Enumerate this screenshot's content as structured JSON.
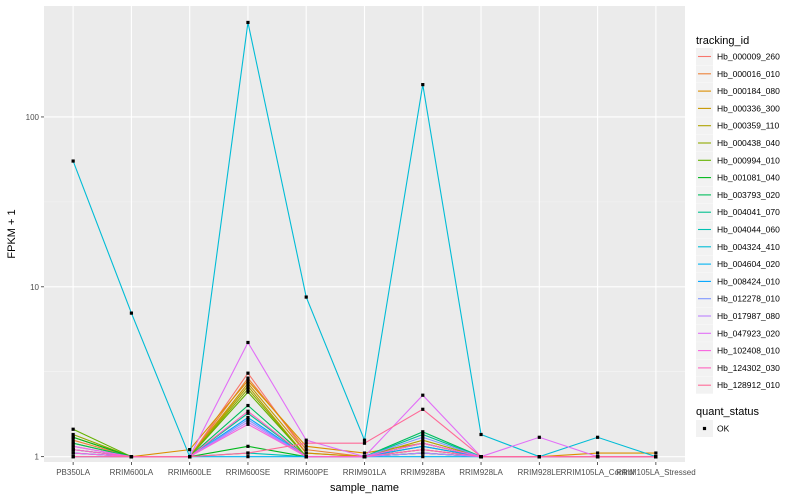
{
  "chart_data": {
    "type": "line",
    "xlabel": "sample_name",
    "ylabel": "FPKM + 1",
    "y_scale": "log10",
    "ylim": [
      0.93,
      450
    ],
    "y_ticks": [
      1,
      10,
      100
    ],
    "y_tick_labels": [
      "1",
      "10",
      "100"
    ],
    "categories": [
      "PB350LA",
      "RRIM600LA",
      "RRIM600LE",
      "RRIM600SE",
      "RRIM600PE",
      "RRIM901LA",
      "RRIM928BA",
      "RRIM928LA",
      "RRIM928LE",
      "RRIM105LA_Control",
      "RRIM105LA_Stressed"
    ],
    "category_labels": [
      "PB350LA",
      "RRIM600LA",
      "RRIM600LE",
      "RRIM600SE",
      "RRIM600PE",
      "RRIM901LA",
      "RRIM928BA",
      "RRIM928LA",
      "RRIM928LE",
      "RRIM105LA_Control",
      "RRIM105LA_Stressed"
    ],
    "grid": true,
    "background": "#ebebeb",
    "legend_position": "right",
    "legend_title": "tracking_id",
    "series": [
      {
        "name": "Hb_000009_260",
        "color": "#F8766D",
        "values": [
          1.15,
          1.0,
          1.0,
          3.1,
          1.05,
          1.0,
          1.05,
          1.0,
          1.0,
          1.0,
          1.0
        ]
      },
      {
        "name": "Hb_000016_010",
        "color": "#EC8239",
        "values": [
          1.25,
          1.0,
          1.0,
          2.9,
          1.1,
          1.0,
          1.1,
          1.0,
          1.0,
          1.0,
          1.0
        ]
      },
      {
        "name": "Hb_000184_080",
        "color": "#DB8E00",
        "values": [
          1.1,
          1.0,
          1.1,
          2.8,
          1.15,
          1.05,
          1.2,
          1.0,
          1.0,
          1.05,
          1.05
        ]
      },
      {
        "name": "Hb_000336_300",
        "color": "#C79800",
        "values": [
          1.2,
          1.0,
          1.0,
          2.7,
          1.05,
          1.0,
          1.15,
          1.0,
          1.0,
          1.0,
          1.0
        ]
      },
      {
        "name": "Hb_000359_110",
        "color": "#AEA200",
        "values": [
          1.3,
          1.0,
          1.0,
          2.6,
          1.0,
          1.0,
          1.25,
          1.0,
          1.0,
          1.0,
          1.0
        ]
      },
      {
        "name": "Hb_000438_040",
        "color": "#8FAA00",
        "values": [
          1.35,
          1.0,
          1.0,
          2.5,
          1.0,
          1.0,
          1.1,
          1.0,
          1.0,
          1.0,
          1.0
        ]
      },
      {
        "name": "Hb_000994_010",
        "color": "#64B200",
        "values": [
          1.45,
          1.0,
          1.0,
          2.4,
          1.0,
          1.0,
          1.2,
          1.0,
          1.0,
          1.0,
          1.0
        ]
      },
      {
        "name": "Hb_001081_040",
        "color": "#00B81B",
        "values": [
          1.3,
          1.0,
          1.0,
          1.15,
          1.0,
          1.0,
          1.05,
          1.0,
          1.0,
          1.0,
          1.0
        ]
      },
      {
        "name": "Hb_003793_020",
        "color": "#00BD5C",
        "values": [
          1.2,
          1.0,
          1.0,
          2.0,
          1.0,
          1.0,
          1.4,
          1.0,
          1.0,
          1.0,
          1.0
        ]
      },
      {
        "name": "Hb_004041_070",
        "color": "#00C08E",
        "values": [
          1.1,
          1.0,
          1.0,
          1.8,
          1.0,
          1.0,
          1.35,
          1.0,
          1.0,
          1.0,
          1.0
        ]
      },
      {
        "name": "Hb_004044_060",
        "color": "#00C1B2",
        "values": [
          1.05,
          1.0,
          1.0,
          1.05,
          1.0,
          1.0,
          1.05,
          1.0,
          1.0,
          1.0,
          1.0
        ]
      },
      {
        "name": "Hb_004324_410",
        "color": "#00BCD6",
        "values": [
          55,
          7,
          1.0,
          360,
          8.7,
          1.25,
          155,
          1.35,
          1.0,
          1.3,
          1.0
        ]
      },
      {
        "name": "Hb_004604_020",
        "color": "#00B3F2",
        "values": [
          1.0,
          1.0,
          1.0,
          1.0,
          1.0,
          1.0,
          1.0,
          1.0,
          1.0,
          1.0,
          1.0
        ]
      },
      {
        "name": "Hb_008424_010",
        "color": "#00A5FF",
        "values": [
          1.05,
          1.0,
          1.0,
          1.7,
          1.0,
          1.0,
          1.15,
          1.0,
          1.0,
          1.0,
          1.0
        ]
      },
      {
        "name": "Hb_012278_010",
        "color": "#7F96FF",
        "values": [
          1.1,
          1.0,
          1.0,
          1.65,
          1.0,
          1.0,
          1.3,
          1.0,
          1.0,
          1.0,
          1.0
        ]
      },
      {
        "name": "Hb_017987_080",
        "color": "#BC81FF",
        "values": [
          1.0,
          1.0,
          1.0,
          1.6,
          1.0,
          1.0,
          1.05,
          1.0,
          1.0,
          1.0,
          1.0
        ]
      },
      {
        "name": "Hb_047923_020",
        "color": "#E26EF7",
        "values": [
          1.15,
          1.0,
          1.0,
          4.7,
          1.25,
          1.0,
          2.3,
          1.0,
          1.3,
          1.0,
          1.0
        ]
      },
      {
        "name": "Hb_102408_010",
        "color": "#F863DF",
        "values": [
          1.05,
          1.0,
          1.0,
          1.55,
          1.0,
          1.0,
          1.2,
          1.0,
          1.0,
          1.0,
          1.0
        ]
      },
      {
        "name": "Hb_124302_030",
        "color": "#FF62BF",
        "values": [
          1.1,
          1.0,
          1.0,
          1.85,
          1.0,
          1.0,
          1.1,
          1.0,
          1.0,
          1.0,
          1.0
        ]
      },
      {
        "name": "Hb_128912_010",
        "color": "#FF6A98",
        "values": [
          1.0,
          1.0,
          1.0,
          1.05,
          1.2,
          1.2,
          1.9,
          1.0,
          1.0,
          1.0,
          1.0
        ]
      }
    ],
    "shape_legend_title": "quant_status",
    "shape_legend": [
      {
        "label": "OK",
        "shape": "square",
        "color": "#000000"
      }
    ]
  }
}
